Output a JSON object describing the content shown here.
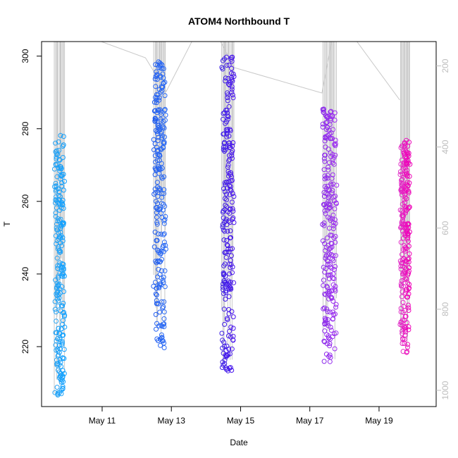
{
  "chart_data": {
    "type": "scatter",
    "title": "ATOM4 Northbound T",
    "xlabel": "Date",
    "ylabel": "T",
    "x_range_days": [
      9.25,
      20.65
    ],
    "x_ticks": [
      {
        "day": 11,
        "label": "May 11"
      },
      {
        "day": 13,
        "label": "May 13"
      },
      {
        "day": 15,
        "label": "May 15"
      },
      {
        "day": 17,
        "label": "May 17"
      },
      {
        "day": 19,
        "label": "May 19"
      }
    ],
    "ylim": [
      203.5,
      304
    ],
    "y_ticks": [
      220,
      240,
      260,
      280,
      300
    ],
    "right_axis": {
      "label": "",
      "range": [
        1040,
        140
      ],
      "ticks": [
        200,
        400,
        600,
        800,
        1000
      ],
      "color": "#bdbdbd"
    },
    "grid": false,
    "groups": [
      {
        "day_start": 9.62,
        "day_end": 9.92,
        "t_min": 206.5,
        "t_max": 278.5,
        "color_start": "#29a3f2",
        "color_end": "#0fa0ff"
      },
      {
        "day_start": 12.48,
        "day_end": 12.85,
        "t_min": 219.5,
        "t_max": 298.5,
        "color_start": "#1e5bf0",
        "color_end": "#2c6cf5"
      },
      {
        "day_start": 14.45,
        "day_end": 14.82,
        "t_min": 212.5,
        "t_max": 299.8,
        "color_start": "#3c1ee6",
        "color_end": "#4a14ee"
      },
      {
        "day_start": 17.35,
        "day_end": 17.78,
        "t_min": 215.8,
        "t_max": 285.5,
        "color_start": "#8a28ea",
        "color_end": "#9d30f0"
      },
      {
        "day_start": 19.6,
        "day_end": 19.9,
        "t_min": 218.0,
        "t_max": 277.0,
        "color_start": "#e033c8",
        "color_end": "#f000b8"
      }
    ]
  }
}
